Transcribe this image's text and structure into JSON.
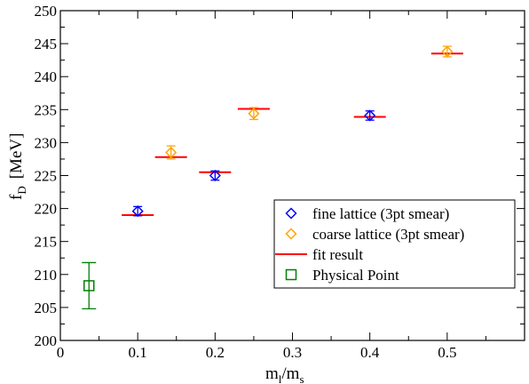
{
  "chart_data": {
    "type": "scatter",
    "xlabel_main": "m",
    "xlabel_sub1": "l",
    "xlabel_mid": "/m",
    "xlabel_sub2": "s",
    "ylabel_main": "f",
    "ylabel_sub": "D",
    "ylabel_unit": "[MeV]",
    "xlim": [
      0,
      0.6
    ],
    "ylim": [
      200,
      250
    ],
    "x_ticks": [
      0,
      0.1,
      0.2,
      0.3,
      0.4,
      0.5
    ],
    "x_tick_labels": [
      "0",
      "0.1",
      "0.2",
      "0.3",
      "0.4",
      "0.5"
    ],
    "y_ticks": [
      200,
      205,
      210,
      215,
      220,
      225,
      230,
      235,
      240,
      245,
      250
    ],
    "y_tick_labels": [
      "200",
      "205",
      "210",
      "215",
      "220",
      "225",
      "230",
      "235",
      "240",
      "245",
      "250"
    ],
    "grid": false,
    "legend_position": "lower-right",
    "series": [
      {
        "name": "fine lattice (3pt smear)",
        "marker": "diamond",
        "color": "#0000ff",
        "x": [
          0.1,
          0.2,
          0.4
        ],
        "y": [
          219.6,
          225.0,
          234.1
        ],
        "err": [
          0.7,
          0.7,
          0.7
        ]
      },
      {
        "name": "coarse lattice (3pt smear)",
        "marker": "diamond",
        "color": "#ffa500",
        "x": [
          0.143,
          0.25,
          0.5
        ],
        "y": [
          228.5,
          234.4,
          243.8
        ],
        "err": [
          1.0,
          0.9,
          0.8
        ]
      },
      {
        "name": "fit result",
        "marker": "hline",
        "color": "#ff0000",
        "x": [
          0.1,
          0.143,
          0.2,
          0.25,
          0.4,
          0.5
        ],
        "y": [
          219.0,
          227.8,
          225.5,
          235.1,
          233.9,
          243.5
        ]
      },
      {
        "name": "Physical Point",
        "marker": "square",
        "color": "#008000",
        "x": [
          0.037
        ],
        "y": [
          208.3
        ],
        "err": [
          3.5
        ]
      }
    ]
  }
}
